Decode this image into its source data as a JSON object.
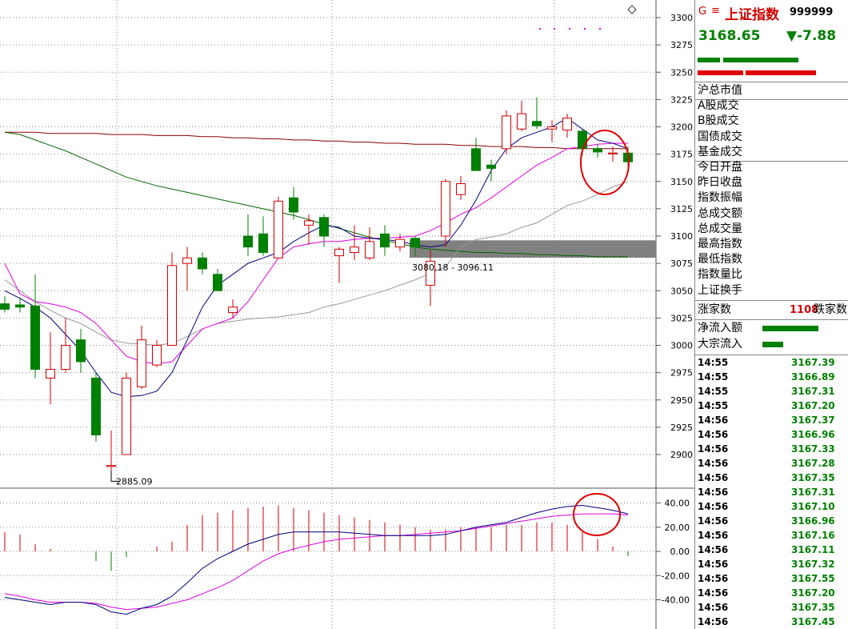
{
  "header": {
    "g_label": "G",
    "menu_glyph": "≡",
    "index_name": "上证指数",
    "index_code": "999999",
    "last_price": "3168.65",
    "change": "▼-7.88",
    "up_color": "#d00000",
    "down_color": "#008000"
  },
  "stats_labels": [
    "沪总市值",
    "A股成交",
    "B股成交",
    "国债成交",
    "基金成交",
    "今日开盘",
    "昨日收盘",
    "指数振幅",
    "总成交额",
    "总成交量",
    "最高指数",
    "最低指数",
    "指数量比",
    "上证换手"
  ],
  "breadth": {
    "label": "涨家数",
    "count": "1108",
    "label2": "跌家数"
  },
  "flow": {
    "net_label": "净流入额",
    "block_label": "大宗流入"
  },
  "ticks": [
    {
      "time": "14:55",
      "price": "3167.39"
    },
    {
      "time": "14:55",
      "price": "3166.89"
    },
    {
      "time": "14:55",
      "price": "3167.31"
    },
    {
      "time": "14:55",
      "price": "3167.20"
    },
    {
      "time": "14:56",
      "price": "3167.37"
    },
    {
      "time": "14:56",
      "price": "3166.96"
    },
    {
      "time": "14:56",
      "price": "3167.33"
    },
    {
      "time": "14:56",
      "price": "3167.28"
    },
    {
      "time": "14:56",
      "price": "3167.35"
    },
    {
      "time": "14:56",
      "price": "3167.31"
    },
    {
      "time": "14:56",
      "price": "3167.10"
    },
    {
      "time": "14:56",
      "price": "3166.96"
    },
    {
      "time": "14:56",
      "price": "3167.16"
    },
    {
      "time": "14:56",
      "price": "3167.11"
    },
    {
      "time": "14:56",
      "price": "3167.32"
    },
    {
      "time": "14:56",
      "price": "3167.55"
    },
    {
      "time": "14:56",
      "price": "3167.20"
    },
    {
      "time": "14:56",
      "price": "3167.35"
    },
    {
      "time": "14:56",
      "price": "3167.45"
    }
  ],
  "chart_data": [
    {
      "type": "candlestick",
      "ylim": [
        2860,
        3310
      ],
      "y_ticks": [
        2900,
        2925,
        2950,
        2975,
        3000,
        3025,
        3050,
        3075,
        3100,
        3125,
        3150,
        3175,
        3200,
        3225,
        3250,
        3275,
        3300
      ],
      "annotations": {
        "low_label": "2885.09",
        "low_value": 2885.09,
        "gap_label": "3080.18 - 3096.11",
        "gap_low": 3080.18,
        "gap_high": 3096.11
      },
      "candles": [
        {
          "o": 3038,
          "h": 3045,
          "l": 3030,
          "c": 3033
        },
        {
          "o": 3037,
          "h": 3044,
          "l": 3030,
          "c": 3035
        },
        {
          "o": 3036,
          "h": 3065,
          "l": 2970,
          "c": 2978
        },
        {
          "o": 2970,
          "h": 3012,
          "l": 2946,
          "c": 2978
        },
        {
          "o": 2978,
          "h": 3025,
          "l": 2975,
          "c": 3000
        },
        {
          "o": 3005,
          "h": 3015,
          "l": 2975,
          "c": 2985
        },
        {
          "o": 2970,
          "h": 2975,
          "l": 2912,
          "c": 2918
        },
        {
          "o": 2889,
          "h": 2922,
          "l": 2885,
          "c": 2890
        },
        {
          "o": 2900,
          "h": 2975,
          "l": 2900,
          "c": 2970
        },
        {
          "o": 2962,
          "h": 3018,
          "l": 2960,
          "c": 3005
        },
        {
          "o": 2982,
          "h": 3005,
          "l": 2980,
          "c": 3000
        },
        {
          "o": 3000,
          "h": 3085,
          "l": 3000,
          "c": 3073
        },
        {
          "o": 3075,
          "h": 3090,
          "l": 3050,
          "c": 3080
        },
        {
          "o": 3080,
          "h": 3085,
          "l": 3065,
          "c": 3070
        },
        {
          "o": 3065,
          "h": 3070,
          "l": 3050,
          "c": 3050
        },
        {
          "o": 3030,
          "h": 3042,
          "l": 3025,
          "c": 3035
        },
        {
          "o": 3100,
          "h": 3120,
          "l": 3082,
          "c": 3090
        },
        {
          "o": 3102,
          "h": 3118,
          "l": 3082,
          "c": 3085
        },
        {
          "o": 3080,
          "h": 3136,
          "l": 3080,
          "c": 3132
        },
        {
          "o": 3135,
          "h": 3145,
          "l": 3115,
          "c": 3122
        },
        {
          "o": 3110,
          "h": 3120,
          "l": 3092,
          "c": 3114
        },
        {
          "o": 3117,
          "h": 3120,
          "l": 3090,
          "c": 3100
        },
        {
          "o": 3082,
          "h": 3090,
          "l": 3057,
          "c": 3088
        },
        {
          "o": 3085,
          "h": 3110,
          "l": 3078,
          "c": 3090
        },
        {
          "o": 3080,
          "h": 3108,
          "l": 3078,
          "c": 3095
        },
        {
          "o": 3102,
          "h": 3110,
          "l": 3082,
          "c": 3090
        },
        {
          "o": 3090,
          "h": 3102,
          "l": 3086,
          "c": 3097
        },
        {
          "o": 3098,
          "h": 3100,
          "l": 3082,
          "c": 3090
        },
        {
          "o": 3055,
          "h": 3087,
          "l": 3036,
          "c": 3077
        },
        {
          "o": 3100,
          "h": 3152,
          "l": 3090,
          "c": 3150
        },
        {
          "o": 3138,
          "h": 3155,
          "l": 3133,
          "c": 3148
        },
        {
          "o": 3180,
          "h": 3190,
          "l": 3162,
          "c": 3160
        },
        {
          "o": 3165,
          "h": 3170,
          "l": 3150,
          "c": 3162
        },
        {
          "o": 3180,
          "h": 3215,
          "l": 3175,
          "c": 3210
        },
        {
          "o": 3198,
          "h": 3224,
          "l": 3196,
          "c": 3212
        },
        {
          "o": 3205,
          "h": 3227,
          "l": 3198,
          "c": 3201
        },
        {
          "o": 3198,
          "h": 3206,
          "l": 3186,
          "c": 3200
        },
        {
          "o": 3197,
          "h": 3212,
          "l": 3190,
          "c": 3208
        },
        {
          "o": 3196,
          "h": 3198,
          "l": 3174,
          "c": 3180
        },
        {
          "o": 3180,
          "h": 3184,
          "l": 3172,
          "c": 3177
        },
        {
          "o": 3176,
          "h": 3182,
          "l": 3168,
          "c": 3176
        },
        {
          "o": 3176,
          "h": 3182,
          "l": 3158,
          "c": 3168
        }
      ],
      "ma_white": [
        3050,
        3043,
        3035,
        3025,
        3010,
        2995,
        2975,
        2957,
        2953,
        2954,
        2958,
        2975,
        3005,
        3035,
        3055,
        3065,
        3075,
        3080,
        3085,
        3095,
        3103,
        3110,
        3108,
        3100,
        3098,
        3097,
        3095,
        3092,
        3090,
        3092,
        3110,
        3133,
        3160,
        3180,
        3190,
        3195,
        3200,
        3208,
        3198,
        3188,
        3185,
        3180
      ],
      "ma_pink": [
        3075,
        3047,
        3040,
        3038,
        3035,
        3030,
        3020,
        3005,
        2990,
        2985,
        2983,
        2985,
        3000,
        3015,
        3020,
        3025,
        3040,
        3060,
        3080,
        3090,
        3093,
        3095,
        3095,
        3097,
        3098,
        3098,
        3099,
        3100,
        3105,
        3112,
        3120,
        3126,
        3135,
        3145,
        3155,
        3165,
        3172,
        3180,
        3182,
        3184,
        3185,
        3185
      ],
      "ma_gray": [
        3060,
        3050,
        3040,
        3032,
        3025,
        3020,
        3012,
        3005,
        3002,
        3001,
        3000,
        3002,
        3008,
        3015,
        3020,
        3022,
        3024,
        3025,
        3026,
        3028,
        3030,
        3035,
        3038,
        3042,
        3046,
        3050,
        3055,
        3060,
        3066,
        3072,
        3090,
        3097,
        3099,
        3102,
        3108,
        3112,
        3120,
        3128,
        3132,
        3138,
        3145,
        3150
      ],
      "ma_darkred": [
        3195,
        3195,
        3195,
        3194,
        3194,
        3194,
        3194,
        3193,
        3193,
        3193,
        3192,
        3192,
        3192,
        3191,
        3191,
        3190,
        3190,
        3189,
        3189,
        3188,
        3188,
        3187,
        3187,
        3186,
        3186,
        3185,
        3185,
        3184,
        3184,
        3184,
        3183,
        3183,
        3182,
        3182,
        3182,
        3181,
        3181,
        3180,
        3180,
        3180,
        3180,
        3180
      ],
      "ma_green": [
        3195,
        3193,
        3188,
        3183,
        3178,
        3172,
        3166,
        3160,
        3154,
        3150,
        3146,
        3143,
        3140,
        3137,
        3134,
        3131,
        3128,
        3125,
        3122,
        3119,
        3115,
        3111,
        3107,
        3103,
        3099,
        3096,
        3093,
        3090,
        3088,
        3087,
        3086,
        3085,
        3085,
        3084,
        3084,
        3083,
        3083,
        3082,
        3082,
        3081,
        3081,
        3081
      ]
    },
    {
      "type": "macd",
      "ylim": [
        -55,
        48
      ],
      "y_ticks": [
        -40,
        -20,
        0,
        20,
        40
      ],
      "y_tick_labels": [
        "-40.00",
        "-20.00",
        "0.00",
        "20.00",
        "40.00"
      ],
      "histogram": [
        16,
        14,
        6,
        2,
        0,
        0,
        -8,
        -16,
        -5,
        0,
        4,
        8,
        22,
        30,
        32,
        34,
        36,
        37,
        38,
        36,
        34,
        32,
        30,
        28,
        26,
        24,
        22,
        20,
        18,
        18,
        20,
        20,
        20,
        22,
        22,
        24,
        24,
        22,
        16,
        10,
        4,
        -4
      ],
      "dif": [
        -38,
        -40,
        -42,
        -44,
        -42,
        -42,
        -44,
        -50,
        -52,
        -47,
        -44,
        -37,
        -26,
        -14,
        -6,
        0,
        6,
        10,
        14,
        16,
        16,
        16,
        16,
        15,
        14,
        13,
        13,
        13,
        13,
        14,
        17,
        20,
        22,
        24,
        28,
        32,
        35,
        37,
        38,
        36,
        34,
        31
      ],
      "dea": [
        -35,
        -37,
        -40,
        -42,
        -42,
        -42,
        -43,
        -46,
        -48,
        -47,
        -46,
        -43,
        -40,
        -35,
        -30,
        -24,
        -16,
        -8,
        -2,
        2,
        5,
        8,
        10,
        11,
        12,
        13,
        13,
        14,
        15,
        16,
        17,
        19,
        21,
        23,
        25,
        27,
        29,
        30,
        31,
        31,
        31,
        30
      ]
    }
  ]
}
